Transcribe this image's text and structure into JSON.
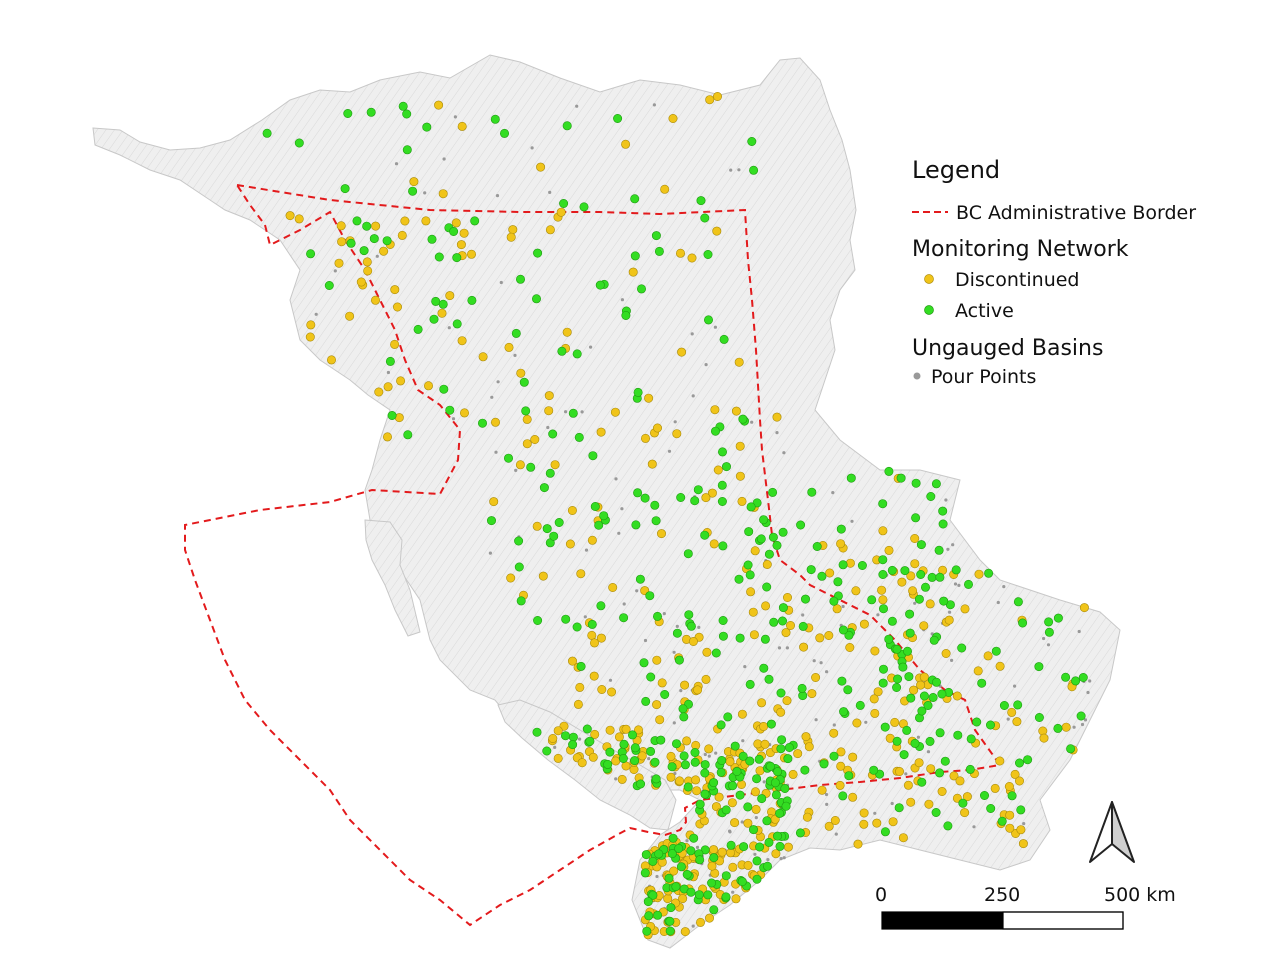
{
  "legend": {
    "title": "Legend",
    "border_label": "BC Administrative Border",
    "network_heading": "Monitoring Network",
    "discontinued_label": "Discontinued",
    "active_label": "Active",
    "ungauged_heading": "Ungauged Basins",
    "pour_points_label": "Pour Points"
  },
  "scale_bar": {
    "label_0": "0",
    "label_mid": "250",
    "label_end": "500 km"
  },
  "colors": {
    "discontinued": "#f0c419",
    "active": "#33dd22",
    "border": "#e31a1c",
    "pour_point": "#999999",
    "basin_fill": "#efefef",
    "basin_lines": "#b9b9b9"
  }
}
